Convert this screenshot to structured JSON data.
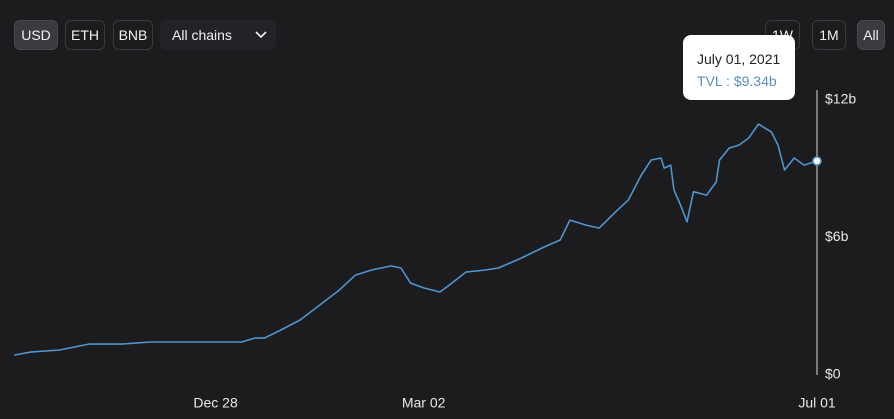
{
  "controls": {
    "currencies": [
      "USD",
      "ETH",
      "BNB"
    ],
    "chain_filter": "All chains",
    "ranges": [
      "1W",
      "1M",
      "All"
    ]
  },
  "chart_data": {
    "type": "line",
    "x": [
      0,
      5,
      14,
      23,
      33,
      42,
      51,
      60,
      70,
      74,
      77,
      82,
      88,
      94,
      100,
      105,
      110,
      116,
      119,
      122,
      126,
      131,
      134,
      139,
      145,
      149,
      156,
      163,
      168,
      171,
      176,
      180,
      185,
      189,
      193,
      196,
      199,
      200,
      202,
      203,
      205,
      207,
      209,
      213,
      216,
      217,
      220,
      223,
      226,
      229,
      233,
      235,
      237,
      240,
      243,
      247
    ],
    "series": [
      {
        "color": "#4f95cf",
        "values": [
          0.87,
          1.0,
          1.09,
          1.35,
          1.35,
          1.44,
          1.44,
          1.44,
          1.44,
          1.61,
          1.61,
          1.96,
          2.4,
          3.05,
          3.7,
          4.36,
          4.58,
          4.76,
          4.67,
          4.01,
          3.8,
          3.62,
          3.93,
          4.49,
          4.58,
          4.67,
          5.1,
          5.58,
          5.89,
          6.76,
          6.54,
          6.41,
          7.11,
          7.64,
          8.73,
          9.38,
          9.47,
          9.03,
          9.16,
          8.07,
          7.42,
          6.68,
          8.0,
          7.85,
          8.42,
          9.38,
          9.9,
          10.03,
          10.34,
          10.95,
          10.6,
          10.03,
          8.94,
          9.47,
          9.16,
          9.34
        ]
      }
    ],
    "xlim": [
      0,
      247
    ],
    "xticks": [
      {
        "value": 62,
        "label": "Dec 28"
      },
      {
        "value": 126,
        "label": "Mar 02"
      },
      {
        "value": 247,
        "label": "Jul 01"
      }
    ],
    "ylim": [
      0,
      12
    ],
    "yticks": [
      {
        "value": 0,
        "label": "$0"
      },
      {
        "value": 6,
        "label": "$6b"
      },
      {
        "value": 12,
        "label": "$12b"
      }
    ],
    "tooltip": {
      "title": "July 01, 2021",
      "text": "TVL : $9.34b"
    }
  }
}
